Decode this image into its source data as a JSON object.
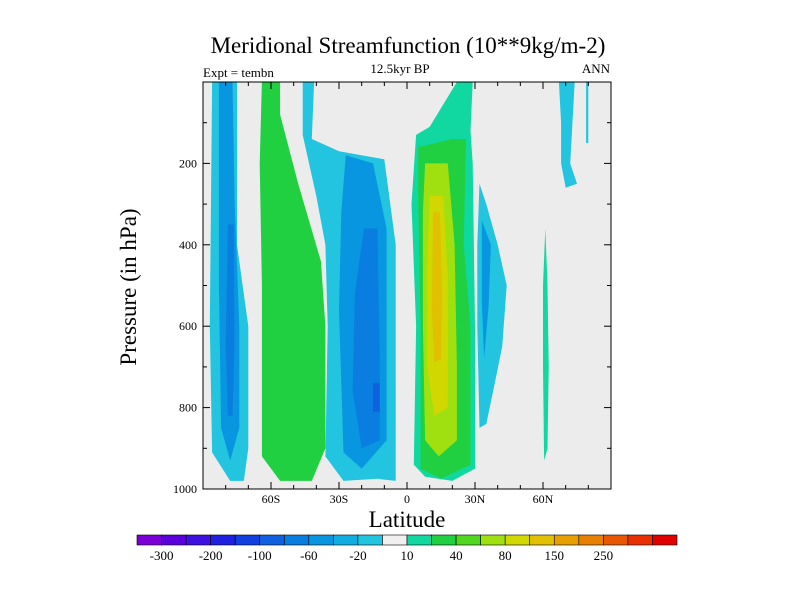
{
  "chart_data": {
    "type": "contour",
    "title": "Meridional Streamfunction (10**9kg/m-2)",
    "subtitle": "12.5kyr BP",
    "left_label": "Expt = tembn",
    "right_label": "ANN",
    "xlabel": "Latitude",
    "ylabel": "Pressure (in hPa)",
    "xlim": [
      -90,
      90
    ],
    "ylim": [
      1000,
      0
    ],
    "xticks": [
      {
        "value": -60,
        "label": "60S"
      },
      {
        "value": -30,
        "label": "30S"
      },
      {
        "value": 0,
        "label": "0"
      },
      {
        "value": 30,
        "label": "30N"
      },
      {
        "value": 60,
        "label": "60N"
      }
    ],
    "yticks": [
      {
        "value": 200,
        "label": "200"
      },
      {
        "value": 400,
        "label": "400"
      },
      {
        "value": 600,
        "label": "600"
      },
      {
        "value": 800,
        "label": "800"
      },
      {
        "value": 1000,
        "label": "1000"
      }
    ],
    "colorbar": {
      "labels": [
        "-300",
        "-200",
        "-100",
        "-60",
        "-20",
        "10",
        "40",
        "80",
        "150",
        "250"
      ],
      "colors": [
        "#7a00d6",
        "#5a00dc",
        "#4010e0",
        "#2020e0",
        "#1040e0",
        "#1060e0",
        "#0a7ee0",
        "#0896e0",
        "#10aee0",
        "#22c4e0",
        "#f0f0f0",
        "#10d8a0",
        "#20d040",
        "#50d820",
        "#a0e010",
        "#d0d800",
        "#e0c000",
        "#e8a000",
        "#e88000",
        "#e85800",
        "#e83000",
        "#e00000"
      ]
    },
    "regions": [
      {
        "name": "sh-polar-cell",
        "value": -20,
        "color": "#22c4e0",
        "points": [
          [
            -86,
            0
          ],
          [
            -75,
            0
          ],
          [
            -75,
            400
          ],
          [
            -70,
            600
          ],
          [
            -70,
            900
          ],
          [
            -72,
            980
          ],
          [
            -78,
            980
          ],
          [
            -86,
            910
          ],
          [
            -87,
            600
          ]
        ]
      },
      {
        "name": "sh-polar-core",
        "value": -60,
        "color": "#0896e0",
        "points": [
          [
            -83,
            0
          ],
          [
            -77,
            0
          ],
          [
            -76,
            300
          ],
          [
            -74,
            600
          ],
          [
            -74,
            850
          ],
          [
            -78,
            930
          ],
          [
            -82,
            850
          ],
          [
            -83,
            500
          ]
        ]
      },
      {
        "name": "sh-polar-inner",
        "value": -100,
        "color": "#0a7ee0",
        "points": [
          [
            -79,
            350
          ],
          [
            -76.5,
            350
          ],
          [
            -76,
            650
          ],
          [
            -77,
            820
          ],
          [
            -79,
            820
          ],
          [
            -80,
            650
          ]
        ]
      },
      {
        "name": "sh-ferrel-cell",
        "value": 40,
        "color": "#20d040",
        "points": [
          [
            -64,
            0
          ],
          [
            -56,
            0
          ],
          [
            -56,
            80
          ],
          [
            -48,
            250
          ],
          [
            -38,
            440
          ],
          [
            -36,
            600
          ],
          [
            -36,
            900
          ],
          [
            -42,
            980
          ],
          [
            -56,
            980
          ],
          [
            -64,
            920
          ],
          [
            -64,
            500
          ],
          [
            -65,
            200
          ]
        ]
      },
      {
        "name": "hadley-south",
        "value": -20,
        "color": "#22c4e0",
        "points": [
          [
            -46,
            0
          ],
          [
            -41,
            0
          ],
          [
            -42,
            140
          ],
          [
            -30,
            170
          ],
          [
            -10,
            190
          ],
          [
            -5,
            400
          ],
          [
            -5,
            980
          ],
          [
            -13,
            975
          ],
          [
            -28,
            980
          ],
          [
            -36,
            920
          ],
          [
            -35,
            600
          ],
          [
            -36,
            400
          ],
          [
            -40,
            280
          ],
          [
            -46,
            130
          ]
        ]
      },
      {
        "name": "hadley-south-core",
        "value": -60,
        "color": "#0896e0",
        "points": [
          [
            -27,
            180
          ],
          [
            -15,
            200
          ],
          [
            -9,
            360
          ],
          [
            -9,
            880
          ],
          [
            -20,
            950
          ],
          [
            -28,
            910
          ],
          [
            -30,
            560
          ],
          [
            -29,
            320
          ]
        ]
      },
      {
        "name": "hadley-south-inner",
        "value": -100,
        "color": "#0a7ee0",
        "points": [
          [
            -19,
            360
          ],
          [
            -13,
            360
          ],
          [
            -12,
            680
          ],
          [
            -12,
            880
          ],
          [
            -20,
            900
          ],
          [
            -24,
            760
          ],
          [
            -23,
            520
          ]
        ]
      },
      {
        "name": "hadley-south-center",
        "value": -200,
        "color": "#1060e0",
        "points": [
          [
            -15,
            740
          ],
          [
            -12,
            740
          ],
          [
            -12,
            810
          ],
          [
            -15,
            810
          ]
        ]
      },
      {
        "name": "hadley-north",
        "value": 10,
        "color": "#10d8a0",
        "points": [
          [
            4,
            130
          ],
          [
            10,
            110
          ],
          [
            22,
            0
          ],
          [
            29,
            0
          ],
          [
            28,
            120
          ],
          [
            29,
            200
          ],
          [
            30,
            600
          ],
          [
            30,
            950
          ],
          [
            20,
            980
          ],
          [
            8,
            970
          ],
          [
            3,
            940
          ],
          [
            4,
            600
          ],
          [
            2,
            300
          ]
        ]
      },
      {
        "name": "hadley-north-core",
        "value": 40,
        "color": "#20d040",
        "points": [
          [
            5,
            160
          ],
          [
            20,
            140
          ],
          [
            26,
            140
          ],
          [
            25,
            400
          ],
          [
            28,
            600
          ],
          [
            28,
            940
          ],
          [
            15,
            975
          ],
          [
            6,
            950
          ],
          [
            6,
            600
          ],
          [
            5,
            300
          ]
        ]
      },
      {
        "name": "hadley-north-80",
        "value": 80,
        "color": "#a0e010",
        "points": [
          [
            8,
            200
          ],
          [
            18,
            200
          ],
          [
            21,
            400
          ],
          [
            22,
            700
          ],
          [
            22,
            880
          ],
          [
            14,
            920
          ],
          [
            8,
            880
          ],
          [
            7,
            600
          ],
          [
            7,
            320
          ]
        ]
      },
      {
        "name": "hadley-north-150",
        "value": 150,
        "color": "#d0d800",
        "points": [
          [
            10,
            280
          ],
          [
            16,
            280
          ],
          [
            18,
            480
          ],
          [
            18,
            800
          ],
          [
            12,
            820
          ],
          [
            9,
            700
          ],
          [
            9,
            450
          ]
        ]
      },
      {
        "name": "hadley-north-250",
        "value": 250,
        "color": "#e0c000",
        "points": [
          [
            11.5,
            320
          ],
          [
            14.5,
            320
          ],
          [
            15.5,
            520
          ],
          [
            15,
            680
          ],
          [
            12,
            690
          ],
          [
            11,
            560
          ]
        ]
      },
      {
        "name": "nh-midlat-cell",
        "value": -20,
        "color": "#22c4e0",
        "points": [
          [
            32,
            250
          ],
          [
            35,
            300
          ],
          [
            40,
            400
          ],
          [
            44,
            500
          ],
          [
            42,
            650
          ],
          [
            38,
            760
          ],
          [
            35,
            840
          ],
          [
            32,
            850
          ],
          [
            31,
            600
          ],
          [
            31,
            400
          ]
        ]
      },
      {
        "name": "nh-midlat-core",
        "value": -60,
        "color": "#0896e0",
        "points": [
          [
            33,
            340
          ],
          [
            37,
            400
          ],
          [
            36,
            550
          ],
          [
            34,
            680
          ],
          [
            33,
            540
          ]
        ]
      },
      {
        "name": "nh-ferrel-cell",
        "value": 10,
        "color": "#10d8a0",
        "points": [
          [
            61,
            360
          ],
          [
            62,
            500
          ],
          [
            62.5,
            700
          ],
          [
            62,
            900
          ],
          [
            60.5,
            930
          ],
          [
            60,
            700
          ],
          [
            60,
            500
          ]
        ]
      },
      {
        "name": "nh-polar-cell",
        "value": -20,
        "color": "#22c4e0",
        "points": [
          [
            67,
            0
          ],
          [
            74,
            0
          ],
          [
            72,
            200
          ],
          [
            75,
            250
          ],
          [
            70,
            260
          ],
          [
            68,
            200
          ],
          [
            68,
            100
          ]
        ]
      },
      {
        "name": "nh-polar-strip",
        "value": -20,
        "color": "#22c4e0",
        "points": [
          [
            79,
            0
          ],
          [
            80,
            0
          ],
          [
            80,
            150
          ],
          [
            79,
            150
          ]
        ]
      }
    ]
  }
}
